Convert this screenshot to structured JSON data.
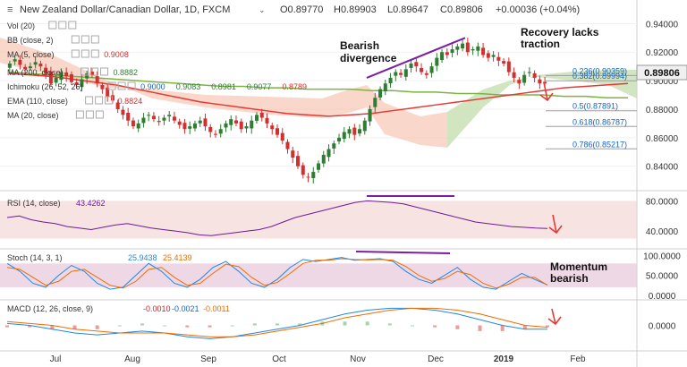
{
  "header": {
    "symbol_title": "New Zealand Dollar/Canadian Dollar, 1D, FXCM",
    "open": "O0.89770",
    "high": "H0.89903",
    "low": "L0.89647",
    "close": "C0.89806",
    "change": "+0.00036 (+0.04%)"
  },
  "indicators": [
    {
      "label": "Vol (20)",
      "values": []
    },
    {
      "label": "BB (close, 2)",
      "values": []
    },
    {
      "label": "MA (5, close)",
      "values": [
        "0.9008"
      ],
      "color": "#d32f2f"
    },
    {
      "label": "MA (200, close)",
      "values": [
        "0.8882"
      ],
      "color": "#2e7d32"
    },
    {
      "label": "Ichimoku (26, 52, 26)",
      "values": [
        "0.9000",
        "0.9083",
        "0.8981",
        "0.9077",
        "0.8789"
      ],
      "colors": [
        "#1565c0",
        "#2e7d32",
        "#2e7d32",
        "#2e7d32",
        "#d32f2f"
      ]
    },
    {
      "label": "EMA (110, close)",
      "values": [
        "0.8824"
      ],
      "color": "#d32f2f"
    },
    {
      "label": "MA (20, close)",
      "values": []
    }
  ],
  "annotations": {
    "bearish_divergence": [
      "Bearish",
      "divergence"
    ],
    "recovery": [
      "Recovery lacks",
      "traction"
    ],
    "momentum": [
      "Momentum",
      "bearish"
    ]
  },
  "last_price_badge": "0.89806",
  "colors": {
    "up": "#2e7d32",
    "down": "#d32f2f",
    "cloud": "#f4b8a0",
    "kumo_green": "#c5deb0",
    "ema": "#e53935",
    "ma200": "#7cb342",
    "trend": "#7b1fa2"
  },
  "chart_data": [
    {
      "type": "candlestick",
      "y_ticks": [
        "0.94000",
        "0.92000",
        "0.90000",
        "0.88000",
        "0.86000",
        "0.84000"
      ],
      "ylim": [
        0.826,
        0.944
      ],
      "x_labels": [
        "Jul",
        "Aug",
        "Sep",
        "Oct",
        "Nov",
        "Dec",
        "2019",
        "Feb"
      ],
      "fibonacci": [
        {
          "label": "0.236(0.90359)",
          "value": 0.90359
        },
        {
          "label": "0.382(0.89994)",
          "value": 0.89994
        },
        {
          "label": "0.5(0.87891)",
          "value": 0.87891
        },
        {
          "label": "0.618(0.86787)",
          "value": 0.86787
        },
        {
          "label": "0.786(0.85217)",
          "value": 0.85217
        }
      ],
      "close_series": [
        0.912,
        0.915,
        0.911,
        0.908,
        0.91,
        0.913,
        0.91,
        0.905,
        0.898,
        0.902,
        0.906,
        0.903,
        0.899,
        0.897,
        0.901,
        0.905,
        0.904,
        0.898,
        0.894,
        0.889,
        0.886,
        0.88,
        0.876,
        0.872,
        0.868,
        0.87,
        0.874,
        0.876,
        0.873,
        0.871,
        0.874,
        0.876,
        0.872,
        0.869,
        0.866,
        0.868,
        0.87,
        0.872,
        0.868,
        0.864,
        0.862,
        0.866,
        0.87,
        0.873,
        0.87,
        0.866,
        0.868,
        0.872,
        0.876,
        0.874,
        0.87,
        0.866,
        0.862,
        0.858,
        0.852,
        0.846,
        0.84,
        0.834,
        0.832,
        0.836,
        0.842,
        0.848,
        0.852,
        0.856,
        0.86,
        0.864,
        0.866,
        0.862,
        0.866,
        0.872,
        0.88,
        0.888,
        0.894,
        0.898,
        0.902,
        0.906,
        0.904,
        0.908,
        0.912,
        0.91,
        0.906,
        0.904,
        0.91,
        0.916,
        0.92,
        0.918,
        0.922,
        0.924,
        0.926,
        0.92,
        0.922,
        0.924,
        0.918,
        0.916,
        0.918,
        0.914,
        0.912,
        0.906,
        0.902,
        0.898,
        0.904,
        0.906,
        0.902,
        0.898,
        0.89806
      ],
      "ema110": [
        0.905,
        0.904,
        0.903,
        0.901,
        0.899,
        0.897,
        0.894,
        0.891,
        0.888,
        0.885,
        0.883,
        0.881,
        0.879,
        0.877,
        0.876,
        0.875,
        0.876,
        0.877,
        0.879,
        0.881,
        0.883,
        0.885,
        0.887,
        0.889,
        0.891,
        0.893,
        0.895,
        0.896,
        0.897,
        0.898
      ],
      "ma200": [
        0.906,
        0.905,
        0.904,
        0.903,
        0.902,
        0.901,
        0.9,
        0.899,
        0.898,
        0.897,
        0.896,
        0.896,
        0.895,
        0.895,
        0.894,
        0.894,
        0.894,
        0.893,
        0.893,
        0.892,
        0.892,
        0.891,
        0.891,
        0.89,
        0.89,
        0.89,
        0.889,
        0.889,
        0.888,
        0.888
      ],
      "trendline_value_range": [
        0.902,
        0.93
      ]
    },
    {
      "type": "line",
      "title": "RSI (14, close)",
      "value_label": "43.4262",
      "y_ticks": [
        "80.0000",
        "40.0000"
      ],
      "ylim": [
        20,
        90
      ],
      "series": [
        {
          "values": [
            58,
            60,
            55,
            52,
            50,
            46,
            44,
            42,
            45,
            48,
            50,
            47,
            44,
            42,
            40,
            38,
            35,
            34,
            36,
            38,
            40,
            42,
            46,
            52,
            58,
            62,
            66,
            70,
            74,
            78,
            80,
            79,
            78,
            76,
            72,
            68,
            64,
            60,
            56,
            52,
            50,
            48,
            46,
            45,
            44,
            43.4
          ]
        }
      ]
    },
    {
      "type": "line",
      "title": "Stoch (14, 3, 1)",
      "value_labels": [
        "25.9438",
        "25.4139"
      ],
      "y_ticks": [
        "100.0000",
        "50.0000",
        "0.0000"
      ],
      "ylim": [
        -5,
        110
      ],
      "series": [
        {
          "values": [
            80,
            60,
            30,
            20,
            50,
            75,
            60,
            30,
            15,
            20,
            50,
            80,
            60,
            30,
            20,
            40,
            70,
            85,
            60,
            30,
            20,
            40,
            70,
            90,
            85,
            90,
            95,
            88,
            90,
            92,
            85,
            60,
            40,
            30,
            50,
            70,
            40,
            20,
            15,
            35,
            55,
            40,
            25.9
          ]
        },
        {
          "values": [
            70,
            65,
            45,
            25,
            35,
            60,
            65,
            45,
            25,
            18,
            35,
            65,
            70,
            45,
            25,
            30,
            55,
            78,
            72,
            45,
            25,
            32,
            55,
            80,
            88,
            88,
            92,
            90,
            89,
            90,
            88,
            72,
            50,
            35,
            42,
            60,
            52,
            30,
            18,
            28,
            45,
            45,
            25.4
          ]
        }
      ]
    },
    {
      "type": "line",
      "title": "MACD (12, 26, close, 9)",
      "value_labels": [
        "-0.0010",
        "-0.0021",
        "-0.0011"
      ],
      "y_ticks": [
        "0.0000"
      ],
      "ylim": [
        -0.012,
        0.012
      ],
      "series": [
        {
          "values": [
            0.001,
            0.0,
            -0.002,
            -0.004,
            -0.005,
            -0.004,
            -0.003,
            -0.004,
            -0.006,
            -0.007,
            -0.006,
            -0.004,
            -0.002,
            0.0,
            0.003,
            0.006,
            0.008,
            0.009,
            0.009,
            0.008,
            0.006,
            0.003,
            0.0,
            -0.002,
            -0.002
          ]
        },
        {
          "values": [
            0.002,
            0.001,
            0.0,
            -0.002,
            -0.003,
            -0.004,
            -0.004,
            -0.004,
            -0.005,
            -0.006,
            -0.006,
            -0.005,
            -0.003,
            -0.001,
            0.001,
            0.004,
            0.006,
            0.008,
            0.009,
            0.009,
            0.008,
            0.006,
            0.003,
            0.0,
            -0.001
          ]
        }
      ]
    }
  ]
}
